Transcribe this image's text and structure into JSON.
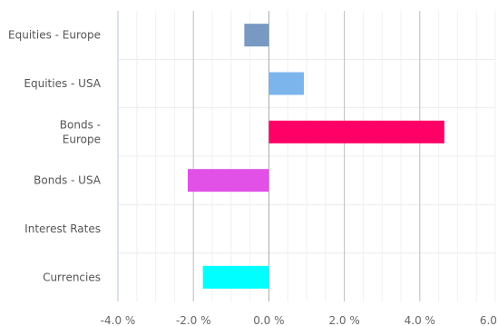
{
  "chart_data": {
    "type": "bar",
    "orientation": "horizontal",
    "title": "",
    "xlabel": "",
    "ylabel": "",
    "categories": [
      [
        "Equities - Europe"
      ],
      [
        "Equities - USA"
      ],
      [
        "Bonds -",
        "Europe"
      ],
      [
        "Bonds - USA"
      ],
      [
        "Interest Rates"
      ],
      [
        "Currencies"
      ]
    ],
    "values": [
      -0.65,
      0.93,
      4.65,
      -2.15,
      0.0,
      -1.75
    ],
    "colors": [
      "#7799c2",
      "#7cb5ec",
      "#ff0066",
      "#e151e8",
      "#ffffff",
      "#00ffff"
    ],
    "xlim": [
      -4.0,
      6.0
    ],
    "xticks": [
      -4.0,
      -2.0,
      0.0,
      2.0,
      4.0,
      6.0
    ],
    "xtick_labels": [
      "-4.0 %",
      "-2.0 %",
      "0.0 %",
      "2.0 %",
      "4.0 %",
      "6.0 %"
    ],
    "unit": "%",
    "grid": true,
    "minor_grid": true,
    "legend": "none"
  }
}
